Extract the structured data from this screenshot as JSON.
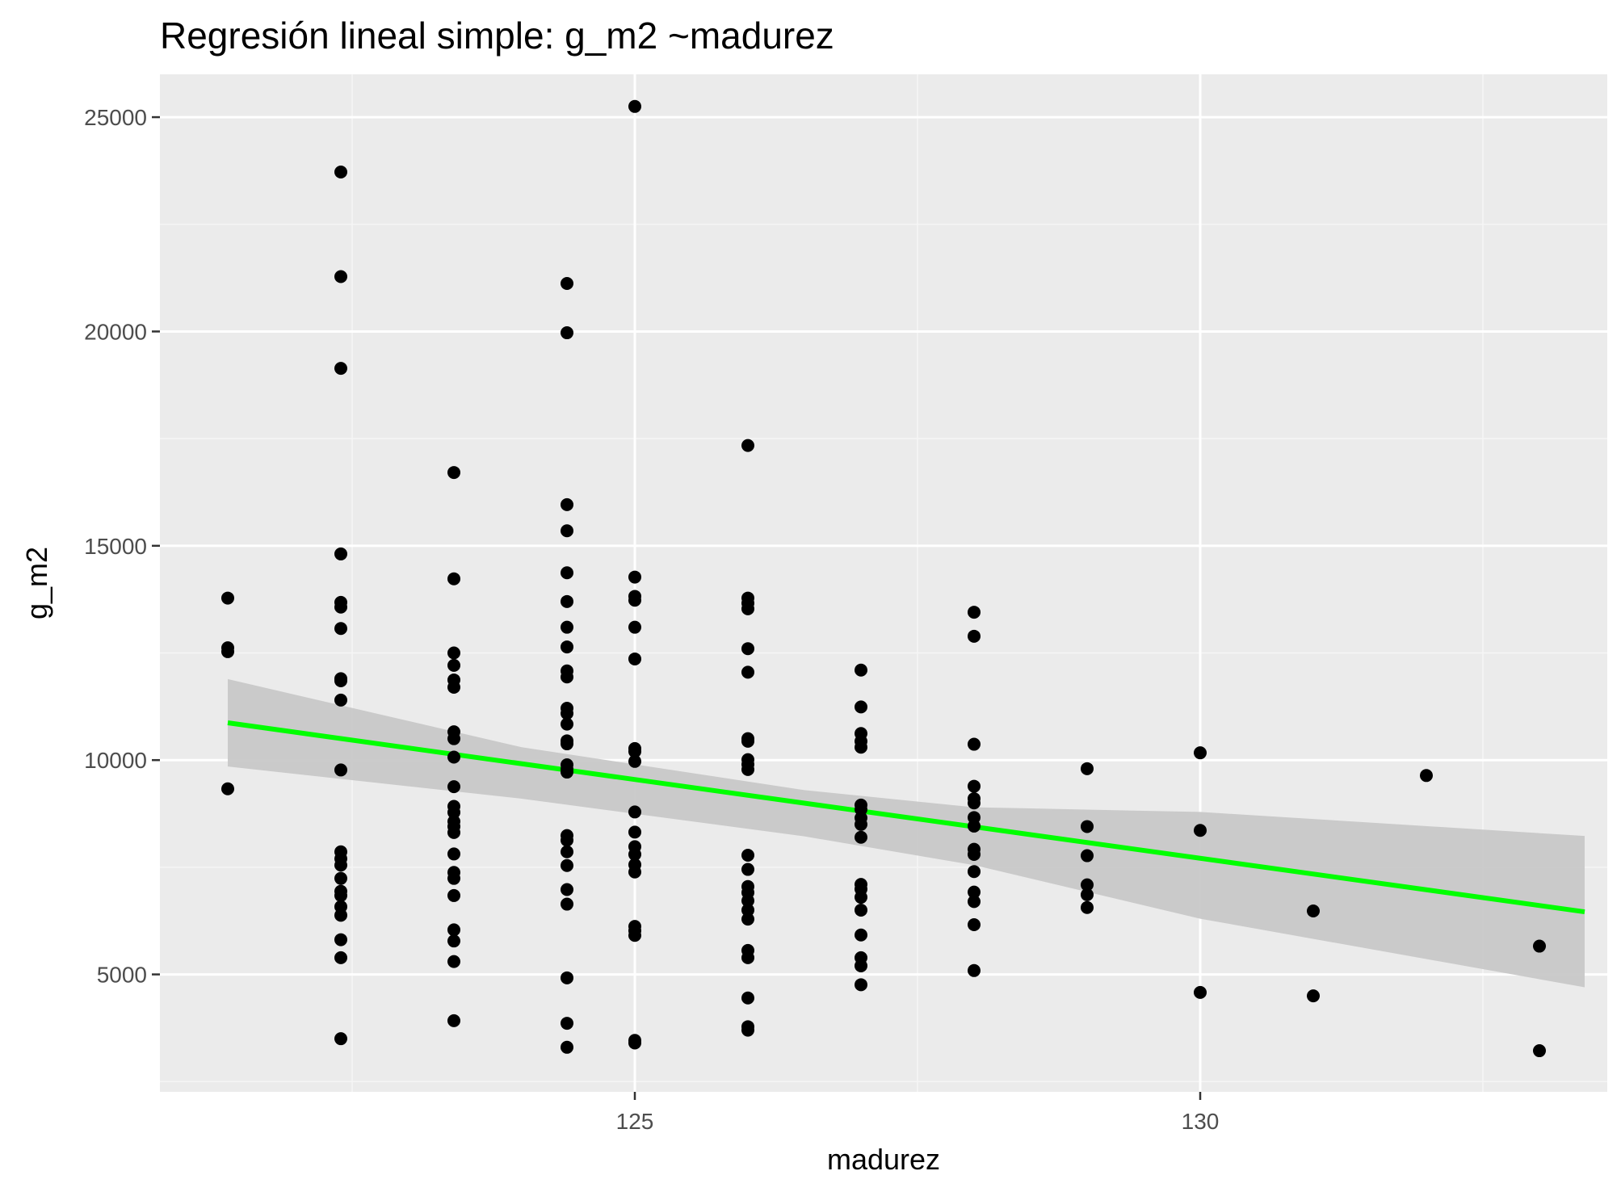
{
  "chart_data": {
    "type": "scatter",
    "title": "Regresión lineal simple:  g_m2 ~madurez",
    "xlabel": "madurez",
    "ylabel": "g_m2",
    "xlim": [
      120.8,
      133.6
    ],
    "ylim": [
      2260,
      26000
    ],
    "x_major_ticks": [
      125,
      130
    ],
    "x_minor_ticks": [
      122.5,
      127.5,
      132.5
    ],
    "y_major_ticks": [
      5000,
      10000,
      15000,
      20000,
      25000
    ],
    "y_minor_ticks": [
      2500,
      7500,
      12500,
      17500,
      22500
    ],
    "x_tick_labels": [
      "125",
      "130"
    ],
    "y_tick_labels": [
      "5000",
      "10000",
      "15000",
      "20000",
      "25000"
    ],
    "grid": true,
    "colors": {
      "panel_background": "#ebebeb",
      "grid_major": "#ffffff",
      "grid_minor": "#f5f5f5",
      "points": "#000000",
      "regression_line": "#00ff00",
      "confidence_band": "#c8c8c8"
    },
    "regression": {
      "x": [
        121.4,
        133.4
      ],
      "y": [
        10870,
        6460
      ],
      "confidence_band": {
        "x": [
          121.4,
          124.0,
          126.5,
          128.0,
          130.0,
          133.4
        ],
        "lower": [
          9850,
          9100,
          8220,
          7550,
          6300,
          4700
        ],
        "upper": [
          11890,
          10300,
          9300,
          8900,
          8790,
          8230
        ]
      }
    },
    "series": [
      {
        "points": [
          [
            121.4,
            13780
          ],
          [
            121.4,
            12620
          ],
          [
            121.4,
            12530
          ],
          [
            121.4,
            9330
          ],
          [
            122.4,
            23720
          ],
          [
            122.4,
            21280
          ],
          [
            122.4,
            19140
          ],
          [
            122.4,
            14810
          ],
          [
            122.4,
            13680
          ],
          [
            122.4,
            13570
          ],
          [
            122.4,
            13070
          ],
          [
            122.4,
            11900
          ],
          [
            122.4,
            11850
          ],
          [
            122.4,
            11400
          ],
          [
            122.4,
            9770
          ],
          [
            122.4,
            7860
          ],
          [
            122.4,
            7700
          ],
          [
            122.4,
            7550
          ],
          [
            122.4,
            7240
          ],
          [
            122.4,
            6940
          ],
          [
            122.4,
            6840
          ],
          [
            122.4,
            6580
          ],
          [
            122.4,
            6380
          ],
          [
            122.4,
            5810
          ],
          [
            122.4,
            5390
          ],
          [
            122.4,
            3500
          ],
          [
            123.4,
            16710
          ],
          [
            123.4,
            14230
          ],
          [
            123.4,
            12500
          ],
          [
            123.4,
            12210
          ],
          [
            123.4,
            11870
          ],
          [
            123.4,
            11700
          ],
          [
            123.4,
            10660
          ],
          [
            123.4,
            10500
          ],
          [
            123.4,
            10070
          ],
          [
            123.4,
            9380
          ],
          [
            123.4,
            8920
          ],
          [
            123.4,
            8780
          ],
          [
            123.4,
            8570
          ],
          [
            123.4,
            8450
          ],
          [
            123.4,
            8310
          ],
          [
            123.4,
            7810
          ],
          [
            123.4,
            7380
          ],
          [
            123.4,
            7240
          ],
          [
            123.4,
            6840
          ],
          [
            123.4,
            6040
          ],
          [
            123.4,
            5780
          ],
          [
            123.4,
            5300
          ],
          [
            123.4,
            3920
          ],
          [
            124.4,
            21120
          ],
          [
            124.4,
            19970
          ],
          [
            124.4,
            15960
          ],
          [
            124.4,
            15350
          ],
          [
            124.4,
            14370
          ],
          [
            124.4,
            13700
          ],
          [
            124.4,
            13100
          ],
          [
            124.4,
            12640
          ],
          [
            124.4,
            12080
          ],
          [
            124.4,
            11940
          ],
          [
            124.4,
            11210
          ],
          [
            124.4,
            11090
          ],
          [
            124.4,
            10840
          ],
          [
            124.4,
            10450
          ],
          [
            124.4,
            10380
          ],
          [
            124.4,
            9890
          ],
          [
            124.4,
            9790
          ],
          [
            124.4,
            9720
          ],
          [
            124.4,
            8240
          ],
          [
            124.4,
            8130
          ],
          [
            124.4,
            7860
          ],
          [
            124.4,
            7540
          ],
          [
            124.4,
            6980
          ],
          [
            124.4,
            6640
          ],
          [
            124.4,
            4920
          ],
          [
            124.4,
            3860
          ],
          [
            124.4,
            3300
          ],
          [
            125.0,
            25250
          ],
          [
            125.0,
            14270
          ],
          [
            125.0,
            13820
          ],
          [
            125.0,
            13730
          ],
          [
            125.0,
            13100
          ],
          [
            125.0,
            12360
          ],
          [
            125.0,
            10270
          ],
          [
            125.0,
            10200
          ],
          [
            125.0,
            9970
          ],
          [
            125.0,
            8790
          ],
          [
            125.0,
            8320
          ],
          [
            125.0,
            7980
          ],
          [
            125.0,
            7800
          ],
          [
            125.0,
            7560
          ],
          [
            125.0,
            7390
          ],
          [
            125.0,
            6120
          ],
          [
            125.0,
            6020
          ],
          [
            125.0,
            5910
          ],
          [
            125.0,
            3460
          ],
          [
            125.0,
            3400
          ],
          [
            126.0,
            17340
          ],
          [
            126.0,
            13780
          ],
          [
            126.0,
            13660
          ],
          [
            126.0,
            13530
          ],
          [
            126.0,
            12600
          ],
          [
            126.0,
            12050
          ],
          [
            126.0,
            10500
          ],
          [
            126.0,
            10440
          ],
          [
            126.0,
            10010
          ],
          [
            126.0,
            9900
          ],
          [
            126.0,
            9780
          ],
          [
            126.0,
            7780
          ],
          [
            126.0,
            7450
          ],
          [
            126.0,
            7050
          ],
          [
            126.0,
            6910
          ],
          [
            126.0,
            6720
          ],
          [
            126.0,
            6500
          ],
          [
            126.0,
            6290
          ],
          [
            126.0,
            5560
          ],
          [
            126.0,
            5390
          ],
          [
            126.0,
            4450
          ],
          [
            126.0,
            3780
          ],
          [
            126.0,
            3700
          ],
          [
            127.0,
            12100
          ],
          [
            127.0,
            11240
          ],
          [
            127.0,
            10620
          ],
          [
            127.0,
            10440
          ],
          [
            127.0,
            10300
          ],
          [
            127.0,
            8950
          ],
          [
            127.0,
            8850
          ],
          [
            127.0,
            8650
          ],
          [
            127.0,
            8500
          ],
          [
            127.0,
            8200
          ],
          [
            127.0,
            7100
          ],
          [
            127.0,
            6990
          ],
          [
            127.0,
            6800
          ],
          [
            127.0,
            6500
          ],
          [
            127.0,
            5920
          ],
          [
            127.0,
            5390
          ],
          [
            127.0,
            5200
          ],
          [
            127.0,
            4760
          ],
          [
            128.0,
            13450
          ],
          [
            128.0,
            12890
          ],
          [
            128.0,
            10370
          ],
          [
            128.0,
            9390
          ],
          [
            128.0,
            9100
          ],
          [
            128.0,
            9000
          ],
          [
            128.0,
            8660
          ],
          [
            128.0,
            8460
          ],
          [
            128.0,
            7920
          ],
          [
            128.0,
            7800
          ],
          [
            128.0,
            7400
          ],
          [
            128.0,
            6920
          ],
          [
            128.0,
            6700
          ],
          [
            128.0,
            6160
          ],
          [
            128.0,
            5090
          ],
          [
            129.0,
            9800
          ],
          [
            129.0,
            8450
          ],
          [
            129.0,
            7770
          ],
          [
            129.0,
            7090
          ],
          [
            129.0,
            6860
          ],
          [
            129.0,
            6560
          ],
          [
            130.0,
            10170
          ],
          [
            130.0,
            8360
          ],
          [
            130.0,
            4580
          ],
          [
            131.0,
            6480
          ],
          [
            131.0,
            4500
          ],
          [
            132.0,
            9640
          ],
          [
            133.0,
            5660
          ],
          [
            133.0,
            3220
          ]
        ]
      }
    ]
  }
}
